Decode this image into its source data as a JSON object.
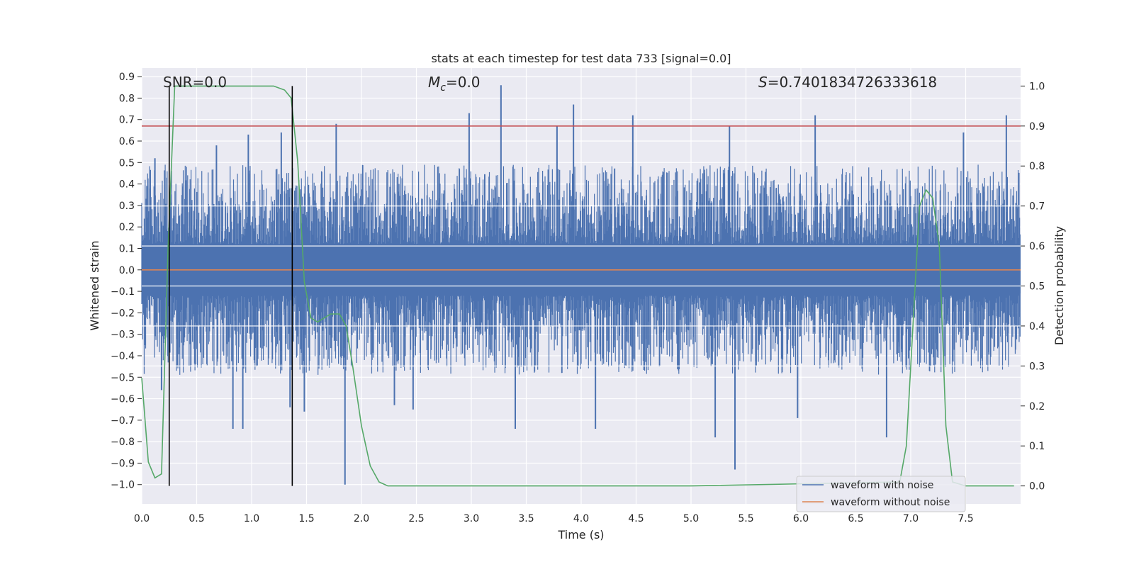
{
  "chart_data": {
    "type": "line",
    "title": "stats at each timestep for test data 733 [signal=0.0]",
    "xlabel": "Time (s)",
    "ylabel_left": "Whitened strain",
    "ylabel_right": "Detection probability",
    "xlim": [
      0.0,
      8.0
    ],
    "ylim_left": [
      -1.09,
      0.94
    ],
    "ylim_right": [
      -0.045,
      1.045
    ],
    "xticks": [
      "0.0",
      "0.5",
      "1.0",
      "1.5",
      "2.0",
      "2.5",
      "3.0",
      "3.5",
      "4.0",
      "4.5",
      "5.0",
      "5.5",
      "6.0",
      "6.5",
      "7.0",
      "7.5"
    ],
    "yticks_left": [
      "0.9",
      "0.8",
      "0.7",
      "0.6",
      "0.5",
      "0.4",
      "0.3",
      "0.2",
      "0.1",
      "0.0",
      "−0.1",
      "−0.2",
      "−0.3",
      "−0.4",
      "−0.5",
      "−0.6",
      "−0.7",
      "−0.8",
      "−0.9",
      "−1.0"
    ],
    "yticks_right": [
      "0.0",
      "0.1",
      "0.2",
      "0.3",
      "0.4",
      "0.5",
      "0.6",
      "0.7",
      "0.8",
      "0.9",
      "1.0"
    ],
    "grid": true,
    "annotations": {
      "snr": "SNR=0.0",
      "mc_symbol": "M",
      "mc_sub": "c",
      "mc_value": "=0.0",
      "s_symbol": "S",
      "s_value": "=0.7401834726333618"
    },
    "series": [
      {
        "name": "waveform with noise",
        "color": "#4c72b0",
        "axis": "left",
        "note": "dense noise band, typical range ~±0.45 with spikes up to ~0.85 and down to ~−1.0",
        "x": [
          0.0,
          8.0
        ],
        "noise_band": [
          -0.45,
          0.45
        ],
        "peaks": [
          {
            "x": 0.12,
            "y": 0.52
          },
          {
            "x": 0.18,
            "y": -0.56
          },
          {
            "x": 0.68,
            "y": 0.58
          },
          {
            "x": 0.83,
            "y": -0.74
          },
          {
            "x": 0.92,
            "y": -0.74
          },
          {
            "x": 0.97,
            "y": 0.63
          },
          {
            "x": 1.27,
            "y": 0.64
          },
          {
            "x": 1.35,
            "y": -0.64
          },
          {
            "x": 1.48,
            "y": -0.66
          },
          {
            "x": 1.77,
            "y": 0.68
          },
          {
            "x": 1.85,
            "y": -1.0
          },
          {
            "x": 2.3,
            "y": -0.63
          },
          {
            "x": 2.47,
            "y": -0.65
          },
          {
            "x": 2.98,
            "y": 0.73
          },
          {
            "x": 3.27,
            "y": 0.86
          },
          {
            "x": 3.4,
            "y": -0.74
          },
          {
            "x": 3.78,
            "y": 0.67
          },
          {
            "x": 3.93,
            "y": 0.77
          },
          {
            "x": 4.13,
            "y": -0.74
          },
          {
            "x": 4.47,
            "y": 0.72
          },
          {
            "x": 5.22,
            "y": -0.78
          },
          {
            "x": 5.35,
            "y": 0.67
          },
          {
            "x": 5.4,
            "y": -0.93
          },
          {
            "x": 5.97,
            "y": -0.69
          },
          {
            "x": 6.13,
            "y": 0.72
          },
          {
            "x": 6.78,
            "y": -0.78
          },
          {
            "x": 7.48,
            "y": 0.64
          },
          {
            "x": 7.87,
            "y": 0.72
          }
        ]
      },
      {
        "name": "waveform without noise",
        "color": "#dd8452",
        "axis": "left",
        "x": [
          0.0,
          8.0
        ],
        "y": [
          0.0,
          0.0
        ]
      },
      {
        "name": "detection probability",
        "color": "#55a868",
        "axis": "right",
        "x": [
          0.0,
          0.06,
          0.12,
          0.18,
          0.24,
          0.3,
          0.36,
          0.5,
          0.8,
          1.0,
          1.2,
          1.3,
          1.36,
          1.42,
          1.48,
          1.54,
          1.6,
          1.66,
          1.72,
          1.8,
          1.86,
          1.92,
          2.0,
          2.08,
          2.16,
          2.24,
          3.0,
          5.0,
          6.9,
          6.96,
          7.02,
          7.08,
          7.14,
          7.2,
          7.26,
          7.32,
          7.38,
          7.5,
          7.94
        ],
        "y": [
          0.27,
          0.06,
          0.02,
          0.03,
          0.6,
          1.0,
          1.0,
          1.0,
          1.0,
          1.0,
          1.0,
          0.99,
          0.97,
          0.81,
          0.51,
          0.42,
          0.41,
          0.42,
          0.43,
          0.43,
          0.4,
          0.3,
          0.15,
          0.05,
          0.01,
          0.0,
          0.0,
          0.0,
          0.01,
          0.1,
          0.4,
          0.7,
          0.74,
          0.72,
          0.6,
          0.15,
          0.01,
          0.0,
          0.0
        ]
      }
    ],
    "threshold": {
      "value": 0.9,
      "axis": "right",
      "color": "#c44e52"
    },
    "vertical_lines": [
      {
        "x": 0.25
      },
      {
        "x": 1.37
      }
    ],
    "legend": {
      "placement": "lower-right",
      "entries": [
        {
          "label": "waveform with noise",
          "color": "#4c72b0"
        },
        {
          "label": "waveform without noise",
          "color": "#dd8452"
        }
      ]
    }
  }
}
